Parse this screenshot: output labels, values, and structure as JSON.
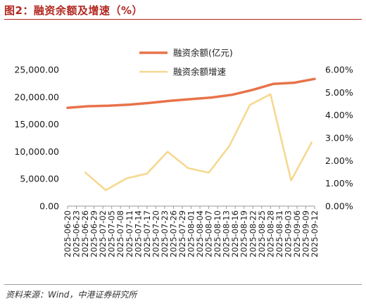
{
  "title": "图2：融资余额及增速（%）",
  "source": "资料来源：Wind，中港证券研究所",
  "chart_data": {
    "type": "line",
    "categories": [
      "2025-06-20",
      "2025-06-23",
      "2025-06-26",
      "2025-06-29",
      "2025-07-02",
      "2025-07-05",
      "2025-07-08",
      "2025-07-11",
      "2025-07-14",
      "2025-07-17",
      "2025-07-20",
      "2025-07-23",
      "2025-07-26",
      "2025-07-29",
      "2025-08-01",
      "2025-08-04",
      "2025-08-07",
      "2025-08-10",
      "2025-08-13",
      "2025-08-16",
      "2025-08-19",
      "2025-08-22",
      "2025-08-25",
      "2025-08-28",
      "2025-08-31",
      "2025-09-03",
      "2025-09-06",
      "2025-09-09",
      "2025-09-12"
    ],
    "series": [
      {
        "name": "融资余额(亿元)",
        "axis": "left",
        "color": "#e8734a",
        "x": [
          "2025-06-20",
          "2025-06-27",
          "2025-07-04",
          "2025-07-11",
          "2025-07-18",
          "2025-07-25",
          "2025-08-01",
          "2025-08-08",
          "2025-08-15",
          "2025-08-22",
          "2025-08-29",
          "2025-09-05",
          "2025-09-12"
        ],
        "values": [
          18000,
          18300,
          18400,
          18600,
          18900,
          19300,
          19600,
          19900,
          20400,
          21300,
          22400,
          22600,
          23300
        ]
      },
      {
        "name": "融资余额增速",
        "axis": "right",
        "color": "#f5d990",
        "x": [
          "2025-06-26",
          "2025-07-03",
          "2025-07-10",
          "2025-07-17",
          "2025-07-24",
          "2025-07-31",
          "2025-08-07",
          "2025-08-14",
          "2025-08-21",
          "2025-08-28",
          "2025-09-04",
          "2025-09-11"
        ],
        "values": [
          1.48,
          0.7,
          1.22,
          1.43,
          2.39,
          1.67,
          1.47,
          2.64,
          4.45,
          4.92,
          1.13,
          2.8
        ]
      }
    ],
    "y_left": {
      "ticks": [
        "0.00",
        "5,000.00",
        "10,000.00",
        "15,000.00",
        "20,000.00",
        "25,000.00"
      ],
      "ylim": [
        0,
        25000
      ]
    },
    "y_right": {
      "ticks": [
        "0.00%",
        "1.00%",
        "2.00%",
        "3.00%",
        "4.00%",
        "5.00%",
        "6.00%"
      ],
      "ylim": [
        0,
        6
      ]
    },
    "legend_position": "top-center",
    "grid": false
  }
}
